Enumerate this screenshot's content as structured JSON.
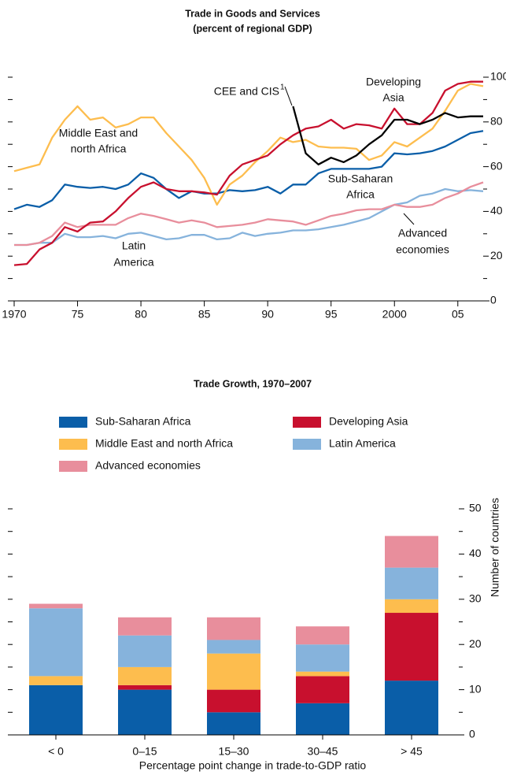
{
  "chart_data": [
    {
      "type": "line",
      "title": "Trade in Goods and Services",
      "subtitle": "(percent of regional GDP)",
      "x": [
        1970,
        1971,
        1972,
        1973,
        1974,
        1975,
        1976,
        1977,
        1978,
        1979,
        1980,
        1981,
        1982,
        1983,
        1984,
        1985,
        1986,
        1987,
        1988,
        1989,
        1990,
        1991,
        1992,
        1993,
        1994,
        1995,
        1996,
        1997,
        1998,
        1999,
        2000,
        2001,
        2002,
        2003,
        2004,
        2005,
        2006,
        2007
      ],
      "xlim": [
        1970,
        2007
      ],
      "xticks": [
        1970,
        {
          "value": 1975,
          "label": "75"
        },
        {
          "value": 1980,
          "label": "80"
        },
        {
          "value": 1985,
          "label": "85"
        },
        {
          "value": 1990,
          "label": "90"
        },
        {
          "value": 1995,
          "label": "95"
        },
        2000,
        {
          "value": 2005,
          "label": "05"
        }
      ],
      "ylim": [
        0,
        100
      ],
      "yticks": [
        0,
        20,
        40,
        60,
        80,
        100
      ],
      "yticks_minor": [
        10,
        30,
        50,
        70,
        90
      ],
      "series": [
        {
          "name": "Latin America",
          "color": "#86b3dc",
          "values": [
            25,
            25,
            26,
            26,
            30,
            28.5,
            28.5,
            29,
            28,
            30,
            30.5,
            29,
            27.5,
            28,
            29.5,
            29.5,
            27.5,
            28,
            30.5,
            29,
            30,
            30.5,
            31.5,
            31.5,
            32,
            33,
            34,
            35.5,
            37,
            40,
            43,
            44,
            47,
            48,
            50,
            49,
            49.5,
            49
          ]
        },
        {
          "name": "Advanced economies",
          "color": "#e88e9c",
          "values": [
            25,
            25,
            26,
            29,
            35,
            33,
            34,
            34,
            34,
            37,
            39,
            38,
            36.5,
            35,
            36,
            35,
            33,
            33.5,
            34,
            35,
            36.5,
            36,
            35.5,
            34,
            36,
            38,
            39,
            40.5,
            41,
            41,
            43,
            42,
            42,
            43,
            46,
            48,
            51,
            53
          ]
        },
        {
          "name": "Sub-Saharan Africa",
          "color": "#0a5ea8",
          "values": [
            41,
            43,
            42,
            45,
            52,
            51,
            50.5,
            51,
            50,
            52,
            57,
            55,
            50,
            46,
            49,
            48,
            48,
            49.5,
            49,
            49.5,
            51,
            48,
            52,
            52,
            57,
            59,
            59,
            59,
            59,
            60,
            66,
            65.5,
            66,
            67,
            69,
            72,
            75,
            76
          ]
        },
        {
          "name": "Middle East and north Africa",
          "color": "#fdbd4e",
          "values": [
            58,
            59.5,
            61,
            73,
            81,
            87,
            81,
            82,
            77.5,
            79,
            82,
            82,
            75,
            69,
            63,
            55,
            43,
            52,
            56,
            62,
            67,
            73,
            71,
            72,
            69,
            68.5,
            68.5,
            68,
            63,
            65,
            71,
            69,
            73,
            77,
            85,
            94,
            97,
            96
          ]
        },
        {
          "name": "Developing Asia",
          "color": "#c8102e",
          "values": [
            16,
            16.5,
            23,
            26,
            33,
            31,
            35,
            35.5,
            40,
            46,
            51,
            53,
            50,
            49,
            49,
            48.5,
            47.5,
            56,
            61,
            63,
            65,
            70,
            74,
            77,
            78,
            81,
            77,
            79,
            78.5,
            77,
            86,
            79,
            79,
            84,
            94,
            97,
            98,
            98
          ]
        },
        {
          "name": "CEE and CIS",
          "color": "#000000",
          "values": [
            null,
            null,
            null,
            null,
            null,
            null,
            null,
            null,
            null,
            null,
            null,
            null,
            null,
            null,
            null,
            null,
            null,
            null,
            null,
            null,
            null,
            null,
            87,
            66,
            61,
            64,
            62,
            65,
            70,
            74,
            81,
            81,
            79,
            81,
            84,
            82,
            82.5,
            82.5
          ]
        }
      ],
      "annotations": [
        {
          "lines": [
            "Middle East and",
            "north Africa"
          ]
        },
        {
          "lines": [
            "CEE and CIS"
          ],
          "superscript": "1"
        },
        {
          "lines": [
            "Developing",
            "Asia"
          ]
        },
        {
          "lines": [
            "Sub-Saharan",
            "Africa"
          ]
        },
        {
          "lines": [
            "Advanced",
            "economies"
          ]
        },
        {
          "lines": [
            "Latin",
            "America"
          ]
        }
      ]
    },
    {
      "type": "bar",
      "stacked": true,
      "title": "Trade Growth, 1970–2007",
      "x_label": "Percentage point change in trade-to-GDP ratio",
      "y_label": "Number of countries",
      "categories": [
        "< 0",
        "0–15",
        "15–30",
        "30–45",
        "> 45"
      ],
      "ylim": [
        0,
        50
      ],
      "yticks": [
        0,
        10,
        20,
        30,
        40,
        50
      ],
      "yticks_minor": [
        5,
        15,
        25,
        35,
        45
      ],
      "series": [
        {
          "name": "Sub-Saharan Africa",
          "color": "#0a5ea8",
          "values": [
            11,
            10,
            5,
            7,
            12
          ]
        },
        {
          "name": "Developing Asia",
          "color": "#c8102e",
          "values": [
            0,
            1,
            5,
            6,
            15
          ]
        },
        {
          "name": "Middle East and north Africa",
          "color": "#fdbd4e",
          "values": [
            2,
            4,
            8,
            1,
            3
          ]
        },
        {
          "name": "Latin America",
          "color": "#86b3dc",
          "values": [
            15,
            7,
            3,
            6,
            7
          ]
        },
        {
          "name": "Advanced economies",
          "color": "#e88e9c",
          "values": [
            1,
            4,
            5,
            4,
            7
          ]
        }
      ]
    }
  ]
}
